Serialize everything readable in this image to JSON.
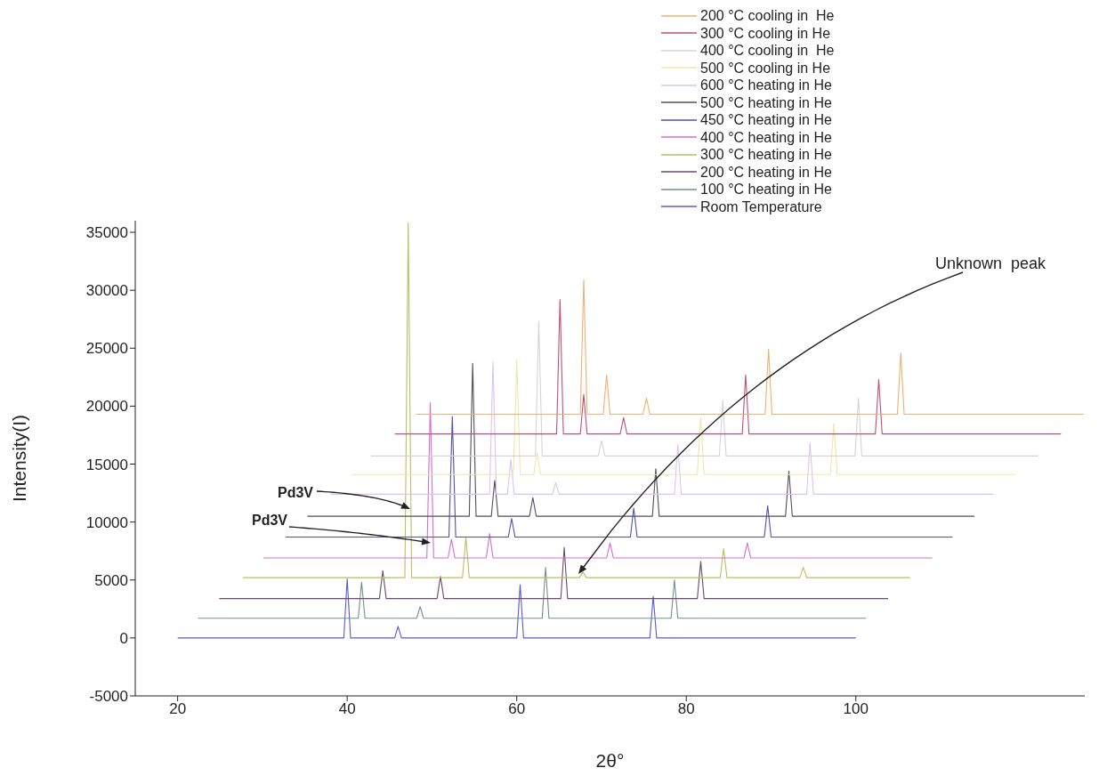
{
  "chart_data": {
    "type": "line",
    "xlabel": "2θ°",
    "ylabel": "Intensity(I)",
    "xlim": [
      15,
      127
    ],
    "xticks": [
      20,
      40,
      60,
      80,
      100
    ],
    "ylim": [
      -5000,
      36000
    ],
    "yticks": [
      -5000,
      0,
      5000,
      10000,
      15000,
      20000,
      25000,
      30000,
      35000
    ],
    "legend": "top right",
    "marker": "none",
    "line_style": "solid",
    "annotations": [
      "Pd3V",
      "Pd3V",
      "Unknown  peak"
    ],
    "series": [
      {
        "name": "Room Temperature",
        "color": "#5a5ad0",
        "x": [
          20,
          39.6,
          40.0,
          40.4,
          45.6,
          46.0,
          46.4,
          60.0,
          60.4,
          60.8,
          75.7,
          76.1,
          76.5,
          100
        ],
        "values": [
          0,
          0,
          5100,
          0,
          0,
          1000,
          0,
          0,
          4600,
          0,
          0,
          3600,
          0,
          0
        ]
      },
      {
        "name": "100 °C heating in He",
        "color": "#7a8a90",
        "x": [
          22.4,
          41.3,
          41.7,
          42.1,
          48.2,
          48.6,
          49.0,
          63.0,
          63.4,
          63.8,
          78.2,
          78.6,
          79.0,
          101.2
        ],
        "values": [
          1700,
          1700,
          4800,
          1700,
          1700,
          2700,
          1700,
          1700,
          6100,
          1700,
          1700,
          5000,
          1700,
          1700
        ]
      },
      {
        "name": "200 °C heating in He",
        "color": "#6a4a70",
        "x": [
          24.9,
          43.8,
          44.2,
          44.6,
          50.6,
          51.0,
          51.4,
          65.2,
          65.6,
          66.0,
          81.3,
          81.7,
          82.1,
          103.8
        ],
        "values": [
          3400,
          3400,
          5800,
          3400,
          3400,
          5300,
          3400,
          3400,
          7800,
          3400,
          3400,
          6600,
          3400,
          3400
        ]
      },
      {
        "name": "300 °C heating in He",
        "color": "#b8c060",
        "x": [
          27.7,
          46.8,
          47.2,
          47.6,
          53.6,
          54.0,
          54.4,
          67.4,
          67.8,
          68.2,
          84.0,
          84.4,
          84.8,
          93.4,
          93.8,
          94.2,
          106.4
        ],
        "values": [
          5200,
          5200,
          35800,
          5200,
          5200,
          8700,
          5200,
          5200,
          5700,
          5200,
          5200,
          7700,
          5200,
          5200,
          6100,
          5200,
          5200
        ]
      },
      {
        "name": "400 °C heating in He",
        "color": "#d070d0",
        "x": [
          30.1,
          49.4,
          49.8,
          50.2,
          51.9,
          52.3,
          52.7,
          56.4,
          56.8,
          57.2,
          70.6,
          71.0,
          71.4,
          86.8,
          87.2,
          87.6,
          109.0
        ],
        "values": [
          6900,
          6900,
          20300,
          6900,
          6900,
          8500,
          6900,
          6900,
          9000,
          6900,
          6900,
          8200,
          6900,
          6900,
          8200,
          6900,
          6900
        ]
      },
      {
        "name": "450 °C heating in He",
        "color": "#5050b0",
        "x": [
          32.7,
          52.0,
          52.4,
          52.8,
          59.0,
          59.4,
          59.8,
          73.4,
          73.8,
          74.2,
          89.2,
          89.6,
          90.0,
          111.4
        ],
        "values": [
          8700,
          8700,
          19100,
          8700,
          8700,
          10300,
          8700,
          8700,
          11200,
          8700,
          8700,
          11400,
          8700,
          8700
        ]
      },
      {
        "name": "500 °C heating in He",
        "color": "#505060",
        "x": [
          35.3,
          54.4,
          54.8,
          55.2,
          57.0,
          57.4,
          57.8,
          61.5,
          61.9,
          62.3,
          76.0,
          76.4,
          76.8,
          91.7,
          92.1,
          92.5,
          114.0
        ],
        "values": [
          10500,
          10500,
          23700,
          10500,
          10500,
          13600,
          10500,
          10500,
          12100,
          10500,
          10500,
          14600,
          10500,
          10500,
          14400,
          10500,
          10500
        ]
      },
      {
        "name": "600 °C heating in He",
        "color": "#dcc4ee",
        "x": [
          38.0,
          56.8,
          57.2,
          57.6,
          58.9,
          59.3,
          59.7,
          64.2,
          64.6,
          65.0,
          78.6,
          79.0,
          79.4,
          94.2,
          94.6,
          95.0,
          116.2
        ],
        "values": [
          12400,
          12400,
          23800,
          12400,
          12400,
          15400,
          12400,
          12400,
          13400,
          12400,
          12400,
          16700,
          12400,
          12400,
          16800,
          12400,
          12400
        ]
      },
      {
        "name": "500 °C cooling in He",
        "color": "#eee8a8",
        "x": [
          40.6,
          59.6,
          60.0,
          60.4,
          62.0,
          62.4,
          62.8,
          81.3,
          81.7,
          82.1,
          97.0,
          97.4,
          97.8,
          118.8
        ],
        "values": [
          14100,
          14100,
          24000,
          14100,
          14100,
          16000,
          14100,
          14100,
          19000,
          14100,
          14100,
          18500,
          14100,
          14100
        ]
      },
      {
        "name": "400 °C cooling in  He",
        "color": "#d4d4d8",
        "x": [
          42.8,
          62.2,
          62.6,
          63.0,
          69.6,
          70.0,
          70.4,
          83.9,
          84.3,
          84.7,
          99.9,
          100.3,
          100.7,
          121.5
        ],
        "values": [
          15700,
          15700,
          27300,
          15700,
          15700,
          17000,
          15700,
          15700,
          20500,
          15700,
          15700,
          20700,
          15700,
          15700
        ]
      },
      {
        "name": "300 °C cooling in He",
        "color": "#c05078",
        "x": [
          45.6,
          64.7,
          65.1,
          65.5,
          67.5,
          67.9,
          68.3,
          72.2,
          72.6,
          73.0,
          86.6,
          87.0,
          87.4,
          102.3,
          102.7,
          103.1,
          124.2
        ],
        "values": [
          17600,
          17600,
          29200,
          17600,
          17600,
          21000,
          17600,
          17600,
          19000,
          17600,
          17600,
          22700,
          17600,
          17600,
          22300,
          17600,
          17600
        ]
      },
      {
        "name": "200 °C cooling in  He",
        "color": "#f0b070",
        "x": [
          48.1,
          67.5,
          67.9,
          68.3,
          70.2,
          70.6,
          71.0,
          74.9,
          75.3,
          75.7,
          89.3,
          89.7,
          90.1,
          104.9,
          105.3,
          105.7,
          126.9
        ],
        "values": [
          19300,
          19300,
          30900,
          19300,
          19300,
          22700,
          19300,
          19300,
          20700,
          19300,
          19300,
          24900,
          19300,
          19300,
          24600,
          19300,
          19300
        ]
      }
    ]
  }
}
